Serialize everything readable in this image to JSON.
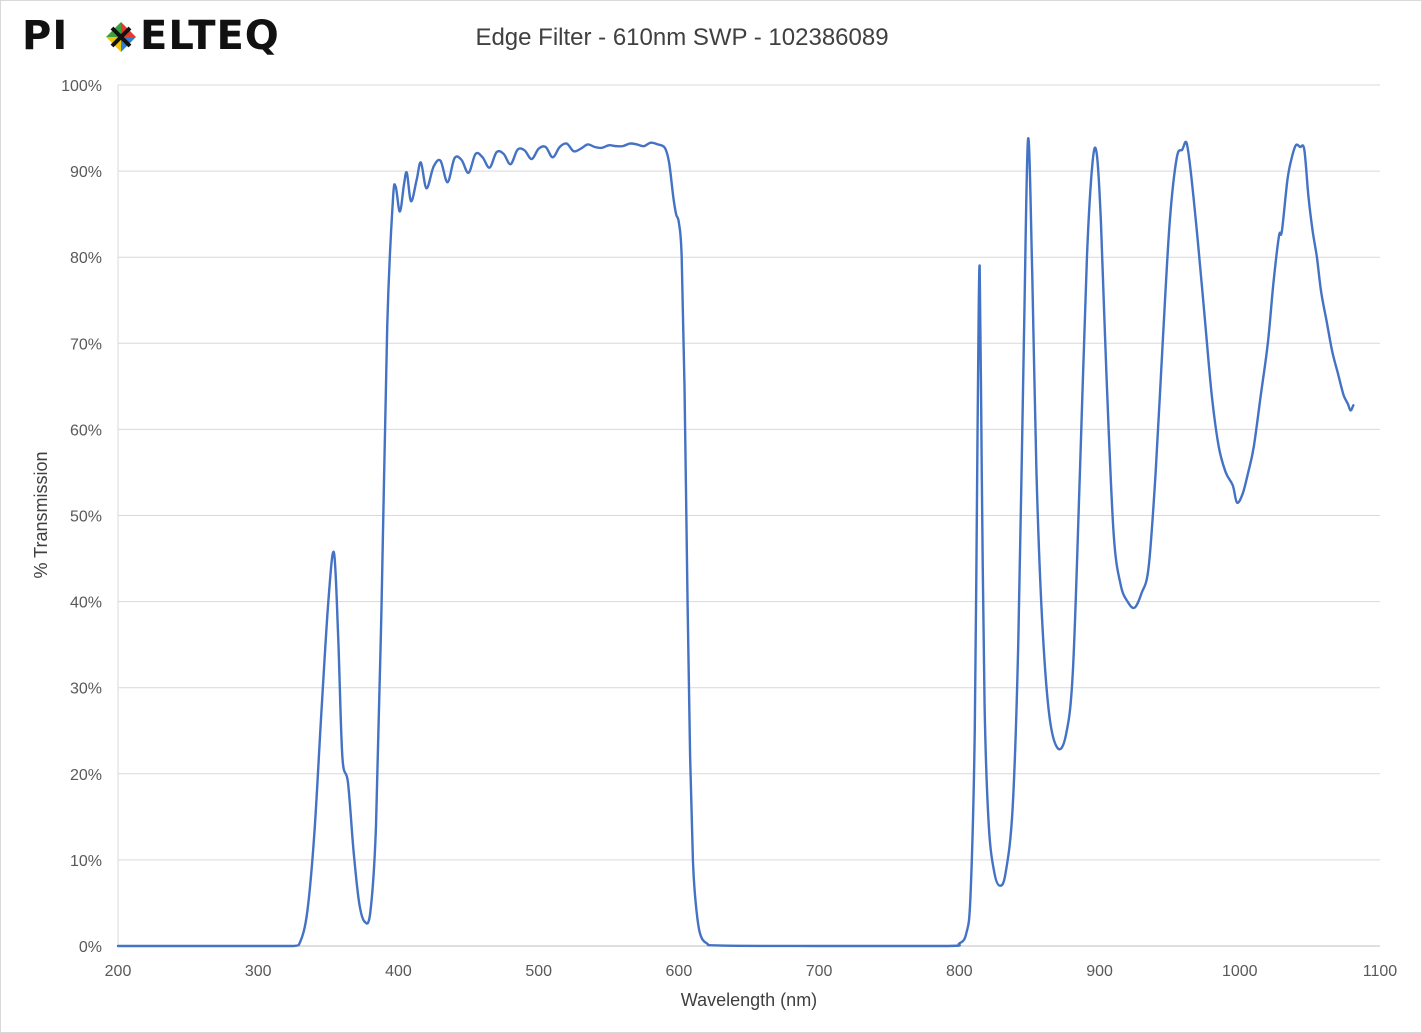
{
  "logo": {
    "text_left": "PI",
    "text_right": "ELTEQ"
  },
  "chart_data": {
    "type": "line",
    "title": "Edge Filter - 610nm SWP - 102386089",
    "xlabel": "Wavelength (nm)",
    "ylabel": "% Transmission",
    "xlim": [
      200,
      1100
    ],
    "ylim": [
      0,
      100
    ],
    "x_ticks": [
      "200",
      "300",
      "400",
      "500",
      "600",
      "700",
      "800",
      "900",
      "1000",
      "1100"
    ],
    "y_ticks": [
      "0%",
      "10%",
      "20%",
      "30%",
      "40%",
      "50%",
      "60%",
      "70%",
      "80%",
      "90%",
      "100%"
    ],
    "grid": "horizontal",
    "series_color": "#4472c4",
    "series": [
      {
        "points": [
          [
            200,
            0
          ],
          [
            300,
            0
          ],
          [
            325,
            0
          ],
          [
            330,
            0.5
          ],
          [
            335,
            4
          ],
          [
            340,
            13
          ],
          [
            345,
            27
          ],
          [
            350,
            40
          ],
          [
            354,
            45.7
          ],
          [
            357,
            36
          ],
          [
            360,
            22
          ],
          [
            364,
            19
          ],
          [
            368,
            11
          ],
          [
            372,
            5
          ],
          [
            376,
            2.8
          ],
          [
            380,
            4
          ],
          [
            384,
            14
          ],
          [
            388,
            40
          ],
          [
            392,
            72
          ],
          [
            396,
            86.5
          ],
          [
            398,
            88.2
          ],
          [
            401,
            85.3
          ],
          [
            404,
            88.5
          ],
          [
            406,
            89.8
          ],
          [
            409,
            86.5
          ],
          [
            413,
            89
          ],
          [
            416,
            91
          ],
          [
            420,
            88
          ],
          [
            425,
            90.5
          ],
          [
            430,
            91.2
          ],
          [
            435,
            88.7
          ],
          [
            440,
            91.5
          ],
          [
            445,
            91.3
          ],
          [
            450,
            89.8
          ],
          [
            455,
            92
          ],
          [
            460,
            91.6
          ],
          [
            465,
            90.4
          ],
          [
            470,
            92.2
          ],
          [
            475,
            92
          ],
          [
            480,
            90.8
          ],
          [
            485,
            92.5
          ],
          [
            490,
            92.4
          ],
          [
            495,
            91.4
          ],
          [
            500,
            92.6
          ],
          [
            505,
            92.8
          ],
          [
            510,
            91.6
          ],
          [
            515,
            92.8
          ],
          [
            520,
            93.2
          ],
          [
            525,
            92.3
          ],
          [
            530,
            92.6
          ],
          [
            535,
            93.1
          ],
          [
            540,
            92.8
          ],
          [
            545,
            92.7
          ],
          [
            550,
            93
          ],
          [
            555,
            92.9
          ],
          [
            560,
            92.9
          ],
          [
            565,
            93.2
          ],
          [
            570,
            93.1
          ],
          [
            575,
            92.9
          ],
          [
            580,
            93.3
          ],
          [
            585,
            93.1
          ],
          [
            590,
            92.7
          ],
          [
            593,
            91
          ],
          [
            596,
            87
          ],
          [
            598,
            85
          ],
          [
            600,
            84
          ],
          [
            602,
            80
          ],
          [
            604,
            65
          ],
          [
            606,
            42
          ],
          [
            608,
            22
          ],
          [
            610,
            10
          ],
          [
            612,
            5
          ],
          [
            615,
            1.5
          ],
          [
            620,
            0.3
          ],
          [
            630,
            0.05
          ],
          [
            700,
            0
          ],
          [
            790,
            0
          ],
          [
            800,
            0.3
          ],
          [
            805,
            1.5
          ],
          [
            808,
            6
          ],
          [
            811,
            25
          ],
          [
            813,
            60
          ],
          [
            814.5,
            79
          ],
          [
            816,
            55
          ],
          [
            818,
            28
          ],
          [
            821,
            14
          ],
          [
            825,
            8.5
          ],
          [
            829,
            7
          ],
          [
            833,
            8.5
          ],
          [
            838,
            16
          ],
          [
            842,
            35
          ],
          [
            846,
            70
          ],
          [
            849,
            93.7
          ],
          [
            852,
            78
          ],
          [
            855,
            55
          ],
          [
            859,
            38
          ],
          [
            864,
            27
          ],
          [
            870,
            23
          ],
          [
            876,
            24.5
          ],
          [
            881,
            32
          ],
          [
            886,
            55
          ],
          [
            891,
            80
          ],
          [
            895,
            91
          ],
          [
            898,
            92
          ],
          [
            901,
            84
          ],
          [
            905,
            66
          ],
          [
            910,
            48
          ],
          [
            915,
            42
          ],
          [
            920,
            40
          ],
          [
            925,
            39.3
          ],
          [
            930,
            41
          ],
          [
            935,
            44
          ],
          [
            940,
            55
          ],
          [
            945,
            70
          ],
          [
            950,
            84
          ],
          [
            955,
            91.5
          ],
          [
            959,
            92.5
          ],
          [
            962,
            93.3
          ],
          [
            965,
            90
          ],
          [
            970,
            82
          ],
          [
            975,
            73
          ],
          [
            980,
            64
          ],
          [
            985,
            58
          ],
          [
            990,
            55
          ],
          [
            995,
            53.5
          ],
          [
            998,
            51.5
          ],
          [
            1002,
            52.5
          ],
          [
            1006,
            55
          ],
          [
            1010,
            58
          ],
          [
            1015,
            64
          ],
          [
            1020,
            70
          ],
          [
            1024,
            77
          ],
          [
            1028,
            82.5
          ],
          [
            1030,
            83
          ],
          [
            1034,
            89
          ],
          [
            1037,
            91.5
          ],
          [
            1040,
            93
          ],
          [
            1043,
            92.8
          ],
          [
            1046,
            92.5
          ],
          [
            1049,
            87
          ],
          [
            1052,
            83
          ],
          [
            1055,
            80
          ],
          [
            1058,
            76
          ],
          [
            1062,
            72.5
          ],
          [
            1066,
            69
          ],
          [
            1070,
            66.5
          ],
          [
            1074,
            64
          ],
          [
            1077,
            63
          ],
          [
            1079,
            62.2
          ],
          [
            1081,
            62.8
          ]
        ]
      }
    ]
  }
}
